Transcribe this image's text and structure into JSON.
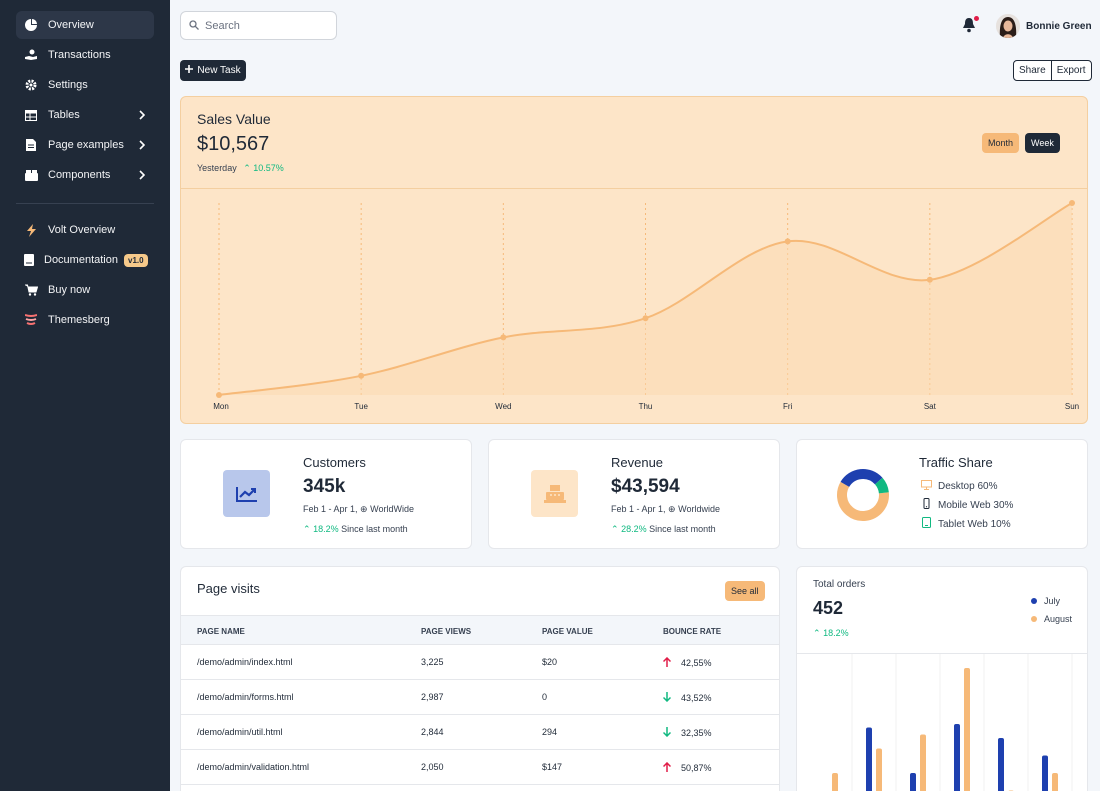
{
  "sidebar": {
    "items": [
      {
        "label": "Overview",
        "icon": "pie-chart-icon",
        "active": true
      },
      {
        "label": "Transactions",
        "icon": "hand-coin-icon"
      },
      {
        "label": "Settings",
        "icon": "gear-icon"
      },
      {
        "label": "Tables",
        "icon": "table-icon",
        "chevron": true
      },
      {
        "label": "Page examples",
        "icon": "document-icon",
        "chevron": true
      },
      {
        "label": "Components",
        "icon": "boxes-icon",
        "chevron": true
      }
    ],
    "links": [
      {
        "label": "Volt Overview",
        "icon": "lightning-icon"
      },
      {
        "label": "Documentation",
        "icon": "book-icon",
        "badge": "v1.0"
      },
      {
        "label": "Buy now",
        "icon": "cart-icon"
      },
      {
        "label": "Themesberg",
        "icon": "themesberg-logo-icon"
      }
    ]
  },
  "topbar": {
    "search_placeholder": "Search",
    "user_name": "Bonnie Green"
  },
  "actions": {
    "new_task": "New Task",
    "share": "Share",
    "export": "Export"
  },
  "sales": {
    "title": "Sales Value",
    "value": "$10,567",
    "period": "Yesterday",
    "change": "10.57%",
    "toggle_month": "Month",
    "toggle_week": "Week",
    "accent_color": "#f6b978",
    "background_color": "#fde5c8"
  },
  "chart_data": {
    "type": "line",
    "categories": [
      "Mon",
      "Tue",
      "Wed",
      "Thu",
      "Fri",
      "Sat",
      "Sun"
    ],
    "values": [
      0,
      10,
      30,
      40,
      80,
      60,
      100
    ],
    "ylim": [
      0,
      100
    ],
    "grid": "vertical dashed"
  },
  "orders_chart": {
    "type": "bar",
    "series": [
      {
        "name": "July",
        "color": "#1e40af",
        "values": [
          1,
          38,
          12,
          40,
          32,
          22
        ]
      },
      {
        "name": "August",
        "color": "#f6b978",
        "values": [
          12,
          26,
          34,
          72,
          2,
          12
        ]
      }
    ]
  },
  "customers": {
    "title": "Customers",
    "value": "345k",
    "range": "Feb 1 - Apr 1,",
    "region": "WorldWide",
    "change": "18.2%",
    "since": "Since last month"
  },
  "revenue": {
    "title": "Revenue",
    "value": "$43,594",
    "range": "Feb 1 - Apr 1,",
    "region": "Worldwide",
    "change": "28.2%",
    "since": "Since last month"
  },
  "traffic": {
    "title": "Traffic Share",
    "items": [
      {
        "label": "Desktop 60%",
        "value": 60,
        "color": "#f6b978",
        "icon": "desktop-icon"
      },
      {
        "label": "Mobile Web 30%",
        "value": 30,
        "color": "#1e40af",
        "icon": "mobile-icon"
      },
      {
        "label": "Tablet Web 10%",
        "value": 10,
        "color": "#10b981",
        "icon": "tablet-icon"
      }
    ]
  },
  "page_visits": {
    "title": "Page visits",
    "see_all": "See all",
    "headers": [
      "PAGE NAME",
      "PAGE VIEWS",
      "PAGE VALUE",
      "BOUNCE RATE"
    ],
    "rows": [
      {
        "page": "/demo/admin/index.html",
        "views": "3,225",
        "value": "$20",
        "bounce": "42,55%",
        "trend": "up"
      },
      {
        "page": "/demo/admin/forms.html",
        "views": "2,987",
        "value": "0",
        "bounce": "43,52%",
        "trend": "down"
      },
      {
        "page": "/demo/admin/util.html",
        "views": "2,844",
        "value": "294",
        "bounce": "32,35%",
        "trend": "down"
      },
      {
        "page": "/demo/admin/validation.html",
        "views": "2,050",
        "value": "$147",
        "bounce": "50,87%",
        "trend": "up"
      }
    ]
  },
  "total_orders": {
    "title": "Total orders",
    "value": "452",
    "change": "18.2%",
    "legend": [
      "July",
      "August"
    ]
  }
}
